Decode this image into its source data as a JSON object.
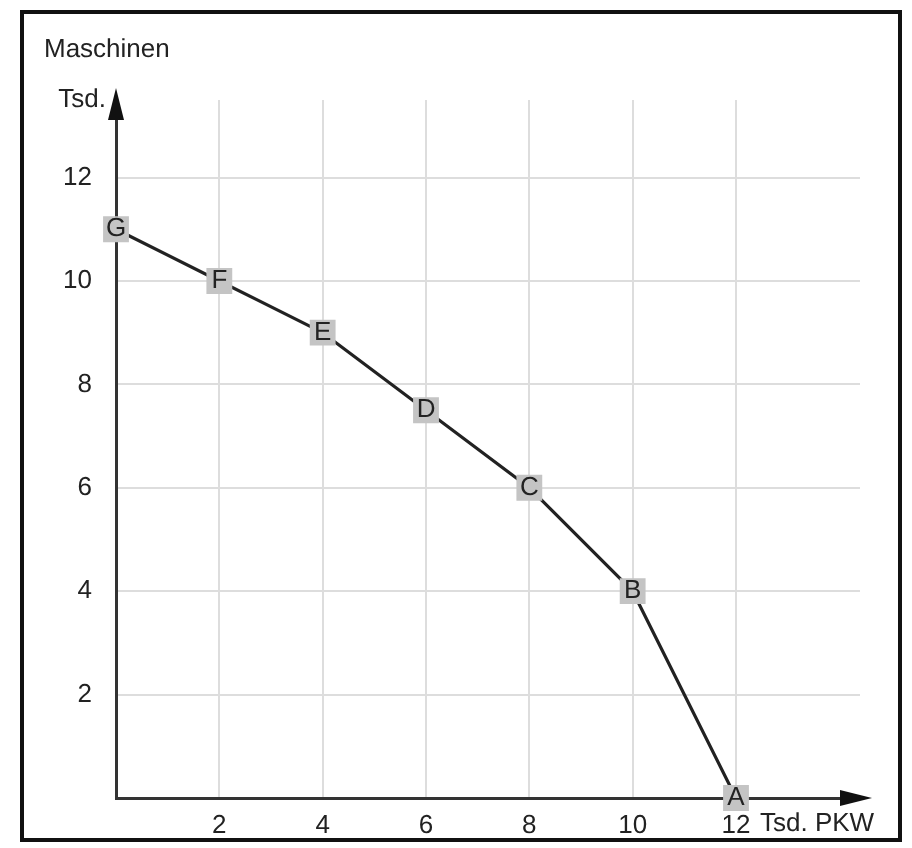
{
  "chart_data": {
    "type": "line",
    "ylabel": "Maschinen\nTsd.",
    "xlabel": "Tsd. PKW",
    "x": [
      0,
      2,
      4,
      6,
      8,
      10,
      12
    ],
    "series": [
      {
        "color": "#222222",
        "values": [
          11,
          10,
          9,
          7.5,
          6,
          4,
          0
        ]
      }
    ],
    "annotations": [
      {
        "text": "G",
        "x": 0,
        "y": 11
      },
      {
        "text": "F",
        "x": 2,
        "y": 10
      },
      {
        "text": "E",
        "x": 4,
        "y": 9
      },
      {
        "text": "D",
        "x": 6,
        "y": 7.5
      },
      {
        "text": "C",
        "x": 8,
        "y": 6
      },
      {
        "text": "B",
        "x": 10,
        "y": 4
      },
      {
        "text": "A",
        "x": 12,
        "y": 0
      }
    ],
    "xlim": [
      0,
      14.4
    ],
    "ylim": [
      0,
      13.5
    ],
    "xticks": [
      2,
      4,
      6,
      8,
      10,
      12
    ],
    "yticks": [
      2,
      4,
      6,
      8,
      10,
      12
    ],
    "grid": true,
    "marker": "square",
    "line_style": "solid",
    "legend": false
  }
}
